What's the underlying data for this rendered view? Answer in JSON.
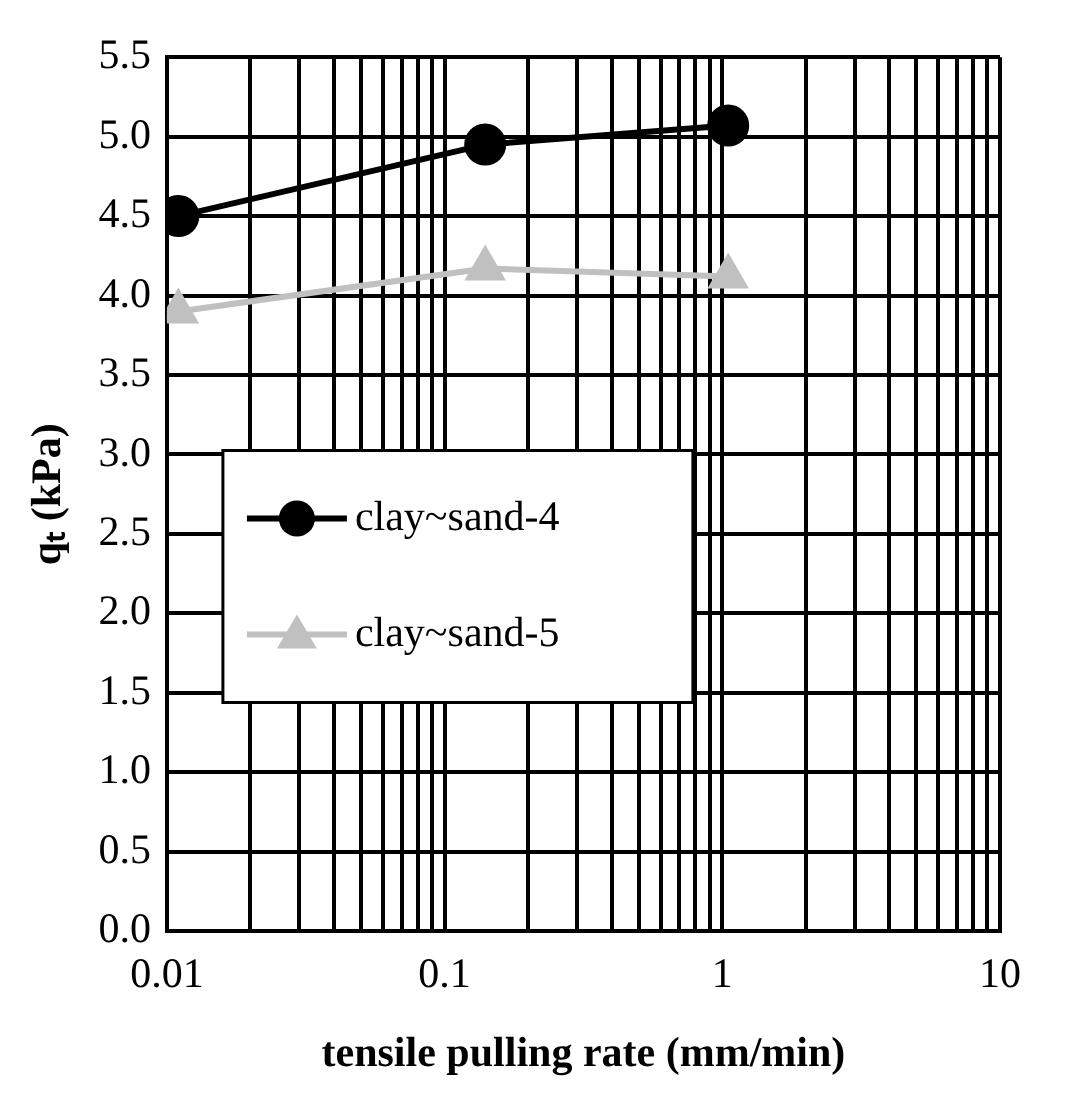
{
  "chart_data": {
    "type": "line",
    "xlabel": "tensile pulling rate (mm/min)",
    "ylabel": "qₜ (kPa)",
    "log": "x",
    "xlim": [
      0.01,
      10
    ],
    "ylim": [
      0,
      5.5
    ],
    "xticks": [
      {
        "value": 0.01,
        "label": "0.01"
      },
      {
        "value": 0.02,
        "label": null
      },
      {
        "value": 0.03,
        "label": null
      },
      {
        "value": 0.04,
        "label": null
      },
      {
        "value": 0.05,
        "label": null
      },
      {
        "value": 0.06,
        "label": null
      },
      {
        "value": 0.07,
        "label": null
      },
      {
        "value": 0.08,
        "label": null
      },
      {
        "value": 0.09,
        "label": null
      },
      {
        "value": 0.1,
        "label": "0.1"
      },
      {
        "value": 0.2,
        "label": null
      },
      {
        "value": 0.3,
        "label": null
      },
      {
        "value": 0.4,
        "label": null
      },
      {
        "value": 0.5,
        "label": null
      },
      {
        "value": 0.6,
        "label": null
      },
      {
        "value": 0.7,
        "label": null
      },
      {
        "value": 0.8,
        "label": null
      },
      {
        "value": 0.9,
        "label": null
      },
      {
        "value": 1,
        "label": "1"
      },
      {
        "value": 2,
        "label": null
      },
      {
        "value": 3,
        "label": null
      },
      {
        "value": 4,
        "label": null
      },
      {
        "value": 5,
        "label": null
      },
      {
        "value": 6,
        "label": null
      },
      {
        "value": 7,
        "label": null
      },
      {
        "value": 8,
        "label": null
      },
      {
        "value": 9,
        "label": null
      },
      {
        "value": 10,
        "label": "10"
      }
    ],
    "yticks": [
      {
        "value": 0,
        "label": "0.0"
      },
      {
        "value": 0.5,
        "label": "0.5"
      },
      {
        "value": 1,
        "label": "1.0"
      },
      {
        "value": 1.5,
        "label": "1.5"
      },
      {
        "value": 2,
        "label": "2.0"
      },
      {
        "value": 2.5,
        "label": "2.5"
      },
      {
        "value": 3,
        "label": "3.0"
      },
      {
        "value": 3.5,
        "label": "3.5"
      },
      {
        "value": 4,
        "label": "4.0"
      },
      {
        "value": 4.5,
        "label": "4.5"
      },
      {
        "value": 5,
        "label": "5.0"
      },
      {
        "value": 5.5,
        "label": "5.5"
      }
    ],
    "grid": true,
    "legend": "bottom",
    "series": [
      {
        "name": "clay~sand-4",
        "color": "#000000",
        "marker": "circle",
        "x": [
          0.011,
          0.14,
          1.05
        ],
        "values": [
          4.5,
          4.95,
          5.07
        ]
      },
      {
        "name": "clay~sand-5",
        "color": "#c0c0c0",
        "marker": "triangle",
        "x": [
          0.011,
          0.14,
          1.05
        ],
        "values": [
          3.9,
          4.17,
          4.12
        ]
      }
    ]
  }
}
